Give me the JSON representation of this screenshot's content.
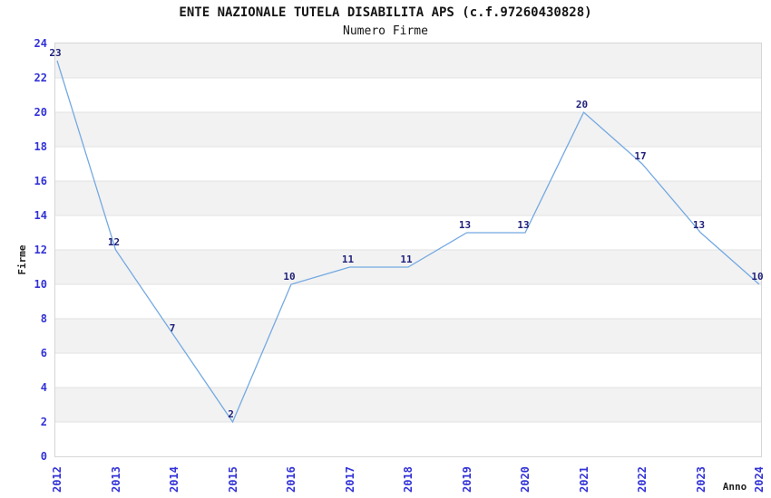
{
  "title": "ENTE NAZIONALE TUTELA DISABILITA APS (c.f.97260430828)",
  "subtitle": "Numero Firme",
  "chart_data": {
    "type": "line",
    "title": "ENTE NAZIONALE TUTELA DISABILITA APS (c.f.97260430828)",
    "subtitle": "Numero Firme",
    "xlabel": "Anno",
    "ylabel": "Firme",
    "categories": [
      "2012",
      "2013",
      "2014",
      "2015",
      "2016",
      "2017",
      "2018",
      "2019",
      "2020",
      "2021",
      "2022",
      "2023",
      "2024"
    ],
    "values": [
      23,
      12,
      7,
      2,
      10,
      11,
      11,
      13,
      13,
      20,
      17,
      13,
      10
    ],
    "ylim": [
      0,
      24
    ],
    "yticks": [
      0,
      2,
      4,
      6,
      8,
      10,
      12,
      14,
      16,
      18,
      20,
      22,
      24
    ],
    "grid": "horizontal gridlines with alternating shaded bands every 2 units",
    "legend": "none",
    "point_labels": true
  },
  "colors": {
    "line": "#74a9e2",
    "band": "#f2f2f2",
    "grid": "#e2e2e2",
    "plot_border": "#d6d6d6",
    "tick_label": "#3232d8",
    "point_label": "#1f1f7a",
    "title_text": "#141414",
    "axis_label_text": "#202020",
    "background": "#ffffff"
  }
}
